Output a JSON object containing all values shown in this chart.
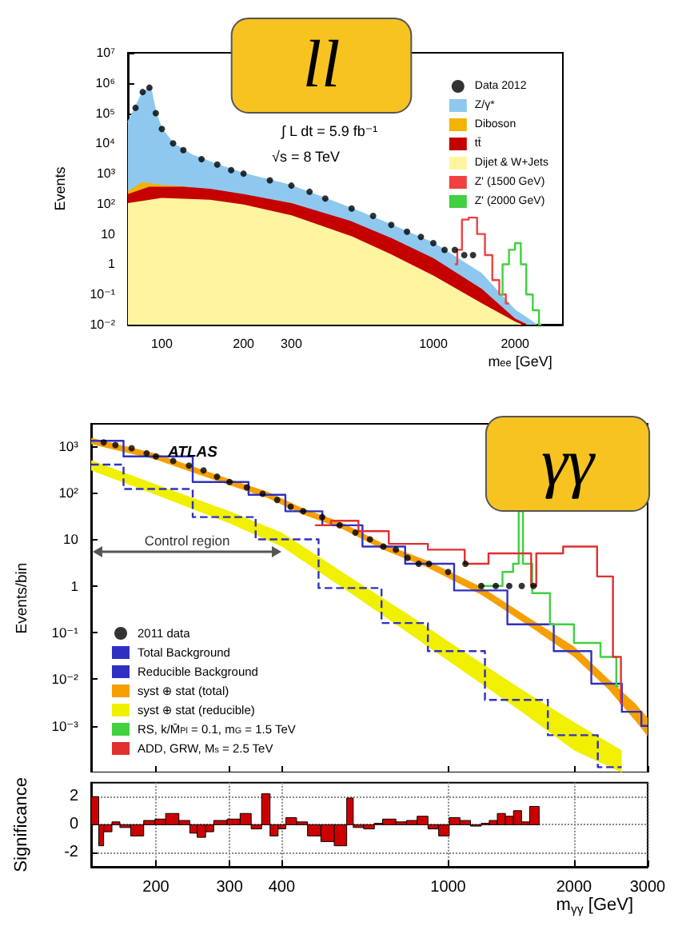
{
  "chart_data": [
    {
      "type": "area",
      "xlabel": "m$_{ee}$ [GeV]",
      "ylabel": "Events",
      "log": "xy",
      "legend": "top right",
      "xlim": [
        75,
        3000
      ],
      "xticks": [
        100,
        200,
        300,
        1000,
        2000
      ],
      "ylim": [
        0.01,
        10000000
      ],
      "yticks": [
        {
          "value": 0.01,
          "label": "10⁻²"
        },
        {
          "value": 0.1,
          "label": "10⁻¹"
        },
        1,
        10,
        {
          "value": 100,
          "label": "10²"
        },
        {
          "value": 1000,
          "label": "10³"
        },
        {
          "value": 10000,
          "label": "10⁴"
        },
        {
          "value": 100000,
          "label": "10⁵"
        },
        {
          "value": 1000000,
          "label": "10⁶"
        },
        {
          "value": 10000000,
          "label": "10⁷"
        }
      ],
      "annotations": [
        "ll",
        "∫ L dt = 5.9 fb⁻¹",
        "√s = 8 TeV"
      ],
      "series": [
        {
          "type": "scatter",
          "marker": "circle",
          "name": "Data 2012",
          "color": "#000000",
          "x": [
            80,
            85,
            90,
            95,
            100,
            110,
            120,
            140,
            160,
            180,
            200,
            250,
            300,
            350,
            400,
            500,
            600,
            700,
            800,
            900,
            1000,
            1100,
            1200,
            1300,
            1400
          ],
          "values": [
            150000,
            500000,
            700000,
            100000,
            30000,
            10000,
            6000,
            3000,
            2000,
            1300,
            1000,
            600,
            400,
            250,
            150,
            70,
            40,
            20,
            12,
            8,
            5,
            3,
            3,
            2,
            2
          ]
        },
        {
          "name": "Z/γ*",
          "color": "#8fc8ef",
          "x": [
            75,
            78,
            85,
            91,
            95,
            100,
            110,
            130,
            160,
            200,
            300,
            400,
            500,
            700,
            1000,
            1500,
            2000,
            2400
          ],
          "values": [
            50000,
            100000,
            500000,
            700000,
            100000,
            30000,
            10000,
            4000,
            2000,
            1000,
            400,
            150,
            70,
            20,
            5,
            0.5,
            0.03,
            0.01
          ]
        },
        {
          "name": "Diboson",
          "color": "#f2b400",
          "x": [
            75,
            85,
            100,
            120,
            130
          ],
          "values": [
            250,
            500,
            400,
            360,
            330
          ]
        },
        {
          "name": "tt̄",
          "color": "#c40000",
          "x": [
            75,
            90,
            120,
            150,
            200,
            300,
            500,
            700,
            1000,
            1500,
            2000,
            2200
          ],
          "values": [
            200,
            350,
            350,
            300,
            200,
            100,
            25,
            7,
            1.5,
            0.15,
            0.015,
            0.01
          ]
        },
        {
          "name": "Dijet & W+Jets",
          "color": "#fff4a0",
          "x": [
            75,
            100,
            150,
            200,
            300,
            500,
            700,
            1000,
            1500,
            2000,
            2100
          ],
          "values": [
            100,
            150,
            130,
            90,
            40,
            8,
            2,
            0.4,
            0.05,
            0.012,
            0.01
          ]
        },
        {
          "type": "step",
          "name": "Z' (1500 GeV)",
          "color": "#f04040",
          "x": [
            1200,
            1250,
            1300,
            1400,
            1500,
            1600,
            1700,
            1800,
            1900
          ],
          "values": [
            1,
            3,
            30,
            35,
            10,
            2,
            0.3,
            0.1,
            0.05
          ]
        },
        {
          "type": "step",
          "name": "Z' (2000 GeV)",
          "color": "#40d040",
          "x": [
            1750,
            1850,
            1950,
            2050,
            2150,
            2250,
            2400,
            2500
          ],
          "values": [
            0.1,
            1,
            3,
            5,
            1,
            0.1,
            0.03,
            0.01
          ]
        }
      ]
    },
    {
      "type": "step",
      "ylabel": "Events/bin",
      "log": "xy",
      "legend": "bottom left",
      "tick_labels": "y",
      "xlim": [
        140,
        3000
      ],
      "xticks": [
        200,
        300,
        400,
        1000,
        2000,
        3000
      ],
      "ylim": [
        0.0001,
        3000
      ],
      "yticks": [
        {
          "value": 0.001,
          "label": "10⁻³"
        },
        {
          "value": 0.01,
          "label": "10⁻²"
        },
        {
          "value": 0.1,
          "label": "10⁻¹"
        },
        1,
        10,
        {
          "value": 100,
          "label": "10²"
        },
        {
          "value": 1000,
          "label": "10³"
        }
      ],
      "annotations": [
        "ATLAS",
        "Control region",
        "γγ"
      ],
      "series": [
        {
          "type": "scatter",
          "marker": "circle",
          "name": "2011 data",
          "color": "#000000",
          "x": [
            150,
            160,
            175,
            190,
            200,
            220,
            240,
            260,
            280,
            300,
            330,
            360,
            390,
            420,
            450,
            500,
            550,
            600,
            650,
            700,
            750,
            800,
            850,
            900,
            1000,
            1100,
            1200,
            1300,
            1400,
            1500,
            1600
          ],
          "values": [
            1200,
            1050,
            900,
            700,
            600,
            480,
            380,
            300,
            220,
            170,
            130,
            95,
            70,
            50,
            40,
            30,
            20,
            14,
            10,
            7,
            6,
            4,
            3,
            3,
            2,
            3,
            1,
            1,
            1,
            1,
            1
          ]
        },
        {
          "name": "Total Background",
          "color": "#3030c0",
          "x": [
            140,
            200,
            300,
            370,
            450,
            556,
            700,
            890,
            1200,
            1600,
            2000,
            2420,
            2800,
            3000
          ],
          "values": [
            1300,
            600,
            170,
            90,
            40,
            20,
            7,
            3,
            0.8,
            0.15,
            0.04,
            0.008,
            0.002,
            0.001
          ]
        },
        {
          "name": "Reducible Background",
          "color": "#3030c0",
          "line_style": "dashed",
          "x": [
            140,
            200,
            300,
            400,
            600,
            800,
            1000,
            1500,
            2000,
            2600
          ],
          "values": [
            400,
            120,
            30,
            10,
            0.9,
            0.16,
            0.04,
            0.0036,
            0.00063,
            0.00013
          ]
        },
        {
          "type": "area",
          "name": "syst ⊕ stat (total)",
          "color": "#f5a000",
          "x": [
            140,
            200,
            300,
            370,
            450,
            556,
            700,
            890,
            1200,
            1600,
            2000,
            2420,
            2800,
            3000
          ],
          "values": [
            null,
            null,
            null,
            null,
            null,
            null,
            null,
            null,
            null,
            null,
            null,
            null,
            null,
            null
          ],
          "lower": [
            1100,
            510,
            145,
            77,
            34,
            17,
            6,
            2.5,
            0.65,
            0.12,
            0.03,
            0.006,
            0.0013,
            0.0006
          ],
          "upper": [
            1500,
            690,
            195,
            105,
            46,
            23,
            8,
            3.5,
            0.95,
            0.18,
            0.05,
            0.01,
            0.003,
            0.0015
          ]
        },
        {
          "type": "area",
          "name": "syst ⊕ stat (reducible)",
          "color": "#f0f000",
          "x": [
            140,
            200,
            300,
            400,
            600,
            800,
            1000,
            1500,
            2000,
            2600
          ],
          "values": [
            null,
            null,
            null,
            null,
            null,
            null,
            null,
            null,
            null,
            null
          ],
          "lower": [
            300,
            90,
            22,
            7,
            0.6,
            0.1,
            0.025,
            0.002,
            0.0003,
            0.0001
          ],
          "upper": [
            500,
            150,
            40,
            14,
            1.3,
            0.25,
            0.065,
            0.006,
            0.0012,
            0.0003
          ]
        },
        {
          "name": "RS, k/M̄$_{Pl}$ = 0.1, m$_{G}$ = 1.5 TeV",
          "color": "#40d040",
          "x": [
            1195,
            1300,
            1400,
            1460,
            1490,
            1530,
            1650,
            1860,
            2150,
            2490,
            2560
          ],
          "values": [
            1,
            1,
            2,
            3,
            40,
            3,
            0.7,
            0.15,
            0.06,
            0.03,
            0.007
          ]
        },
        {
          "name": "ADD, GRW, M$_{s}$ = 2.5 TeV",
          "color": "#e03030",
          "x": [
            480,
            573,
            650,
            800,
            1000,
            1200,
            1300,
            1560,
            1600,
            1650,
            2150,
            2400,
            2560,
            2620
          ],
          "values": [
            20,
            25,
            15,
            8,
            6,
            3,
            5,
            5,
            1,
            5,
            7,
            1.6,
            0.03,
            0.003
          ]
        }
      ]
    },
    {
      "type": "histogram",
      "xlabel": "m$_{γγ}$ [GeV]",
      "ylabel": "Significance",
      "log": "x",
      "grid": true,
      "color": "#cc0000",
      "xlim": [
        140,
        3000
      ],
      "xticks": [
        200,
        300,
        400,
        1000,
        2000,
        3000
      ],
      "ylim": [
        -3,
        3
      ],
      "yticks": [
        -2,
        0,
        2
      ],
      "bins": [
        140,
        146,
        150,
        157,
        164,
        174,
        187,
        199,
        211,
        227,
        241,
        251,
        263,
        275,
        296,
        318,
        338,
        358,
        375,
        392,
        409,
        434,
        461,
        496,
        534,
        572,
        593,
        628,
        666,
        697,
        750,
        795,
        843,
        895,
        949,
        1006,
        1067,
        1131,
        1200,
        1254,
        1311,
        1371,
        1433,
        1498,
        1566,
        1651
      ],
      "values": [
        2.0,
        -1.5,
        -0.5,
        0.2,
        -0.2,
        -0.8,
        0.3,
        0.4,
        0.8,
        0.3,
        -0.6,
        -0.9,
        -0.5,
        0.3,
        0.4,
        0.8,
        -0.3,
        2.2,
        -0.8,
        -0.3,
        0.5,
        0.2,
        -0.8,
        -1.2,
        -1.5,
        1.9,
        -0.2,
        -0.3,
        0.1,
        0.4,
        0.2,
        0.3,
        0.6,
        -0.3,
        -0.8,
        0.5,
        0.3,
        -0.1,
        0.1,
        0.3,
        0.8,
        0.6,
        1.0,
        0.2,
        1.3
      ]
    }
  ]
}
